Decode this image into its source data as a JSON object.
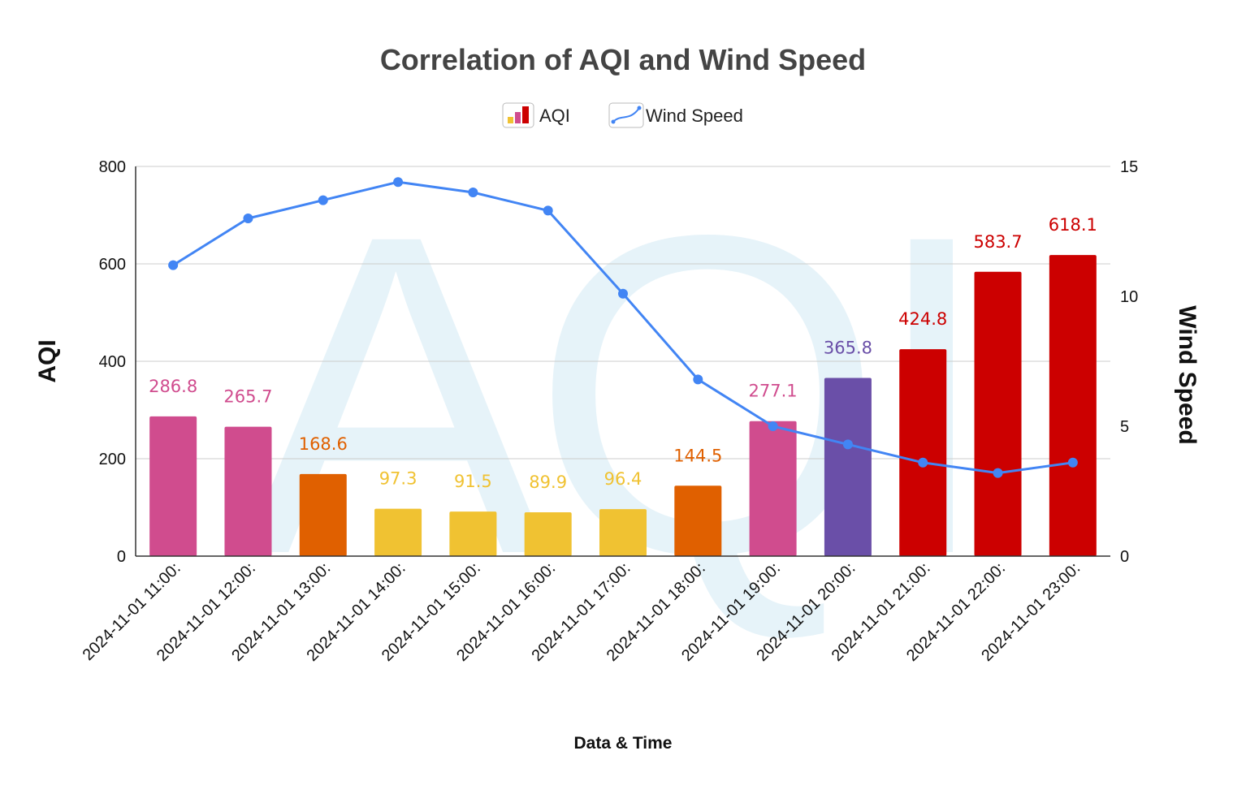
{
  "chart_data": {
    "type": "bar",
    "title": "Correlation of AQI and Wind Speed",
    "xlabel": "Data & Time",
    "ylabel": "AQI",
    "y2label": "Wind Speed",
    "ylim": [
      0,
      800
    ],
    "y2lim": [
      0,
      15
    ],
    "yticks": [
      "0",
      "200",
      "400",
      "600",
      "800"
    ],
    "y2ticks": [
      "0",
      "5",
      "10",
      "15"
    ],
    "grid": true,
    "legend_position": "top",
    "categories": [
      "2024-11-01 11:00:",
      "2024-11-01 12:00:",
      "2024-11-01 13:00:",
      "2024-11-01 14:00:",
      "2024-11-01 15:00:",
      "2024-11-01 16:00:",
      "2024-11-01 17:00:",
      "2024-11-01 18:00:",
      "2024-11-01 19:00:",
      "2024-11-01 20:00:",
      "2024-11-01 21:00:",
      "2024-11-01 22:00:",
      "2024-11-01 23:00:"
    ],
    "series": [
      {
        "name": "AQI",
        "type": "bar",
        "axis": "left",
        "values": [
          286.8,
          265.7,
          168.6,
          97.3,
          91.5,
          89.9,
          96.4,
          144.5,
          277.1,
          365.8,
          424.8,
          583.7,
          618.1
        ],
        "labels": [
          "286.8",
          "265.7",
          "168.6",
          "97.3",
          "91.5",
          "89.9",
          "96.4",
          "144.5",
          "277.1",
          "365.8",
          "424.8",
          "583.7",
          "618.1"
        ],
        "colors": [
          "#d04c8e",
          "#d04c8e",
          "#e06000",
          "#f0c232",
          "#f0c232",
          "#f0c232",
          "#f0c232",
          "#e06000",
          "#d04c8e",
          "#6a4fa8",
          "#cc0000",
          "#cc0000",
          "#cc0000"
        ]
      },
      {
        "name": "Wind Speed",
        "type": "line",
        "axis": "right",
        "values": [
          11.2,
          13.0,
          13.7,
          14.4,
          14.0,
          13.3,
          10.1,
          6.8,
          5.0,
          4.3,
          3.6,
          3.2,
          3.6
        ],
        "color": "#4285f4"
      }
    ],
    "watermark": "AQI"
  }
}
